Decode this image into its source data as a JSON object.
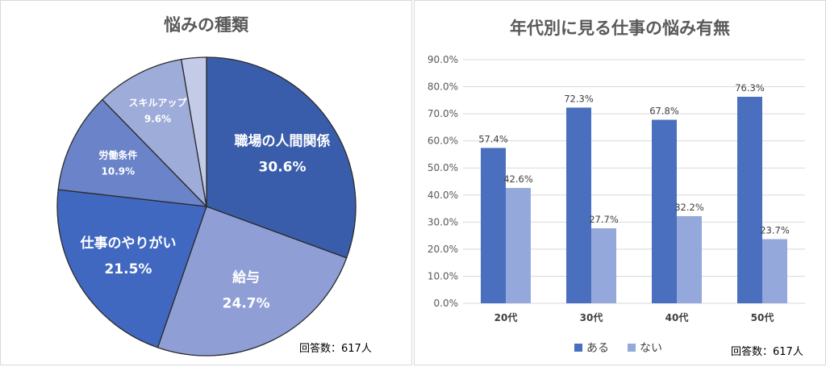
{
  "chart_data": [
    {
      "type": "pie",
      "title": "悩みの種類",
      "slices": [
        {
          "label": "職場の人間関係",
          "value": 30.6,
          "value_label": "30.6%",
          "color": "#3a5dab"
        },
        {
          "label": "給与",
          "value": 24.7,
          "value_label": "24.7%",
          "color": "#8f9fd6"
        },
        {
          "label": "仕事のやりがい",
          "value": 21.5,
          "value_label": "21.5%",
          "color": "#4168c0"
        },
        {
          "label": "労働条件",
          "value": 10.9,
          "value_label": "10.9%",
          "color": "#6b83c8"
        },
        {
          "label": "スキルアップ",
          "value": 9.6,
          "value_label": "9.6%",
          "color": "#9eacd9"
        },
        {
          "label": "",
          "value": 2.7,
          "value_label": "",
          "color": "#c3cbe8"
        }
      ],
      "note": "回答数：617人"
    },
    {
      "type": "bar",
      "title": "年代別に見る仕事の悩み有無",
      "categories": [
        "20代",
        "30代",
        "40代",
        "50代"
      ],
      "series": [
        {
          "name": "ある",
          "values": [
            57.4,
            72.3,
            67.8,
            76.3
          ],
          "labels": [
            "57.4%",
            "72.3%",
            "67.8%",
            "76.3%"
          ],
          "color": "#4a6fbe"
        },
        {
          "name": "ない",
          "values": [
            42.6,
            27.7,
            32.2,
            23.7
          ],
          "labels": [
            "42.6%",
            "27.7%",
            "32.2%",
            "23.7%"
          ],
          "color": "#95a8db"
        }
      ],
      "ylim": [
        0,
        90
      ],
      "yticks": [
        "0.0%",
        "10.0%",
        "20.0%",
        "30.0%",
        "40.0%",
        "50.0%",
        "60.0%",
        "70.0%",
        "80.0%",
        "90.0%"
      ],
      "legend_position": "bottom",
      "grid": true,
      "note": "回答数：617人"
    }
  ]
}
